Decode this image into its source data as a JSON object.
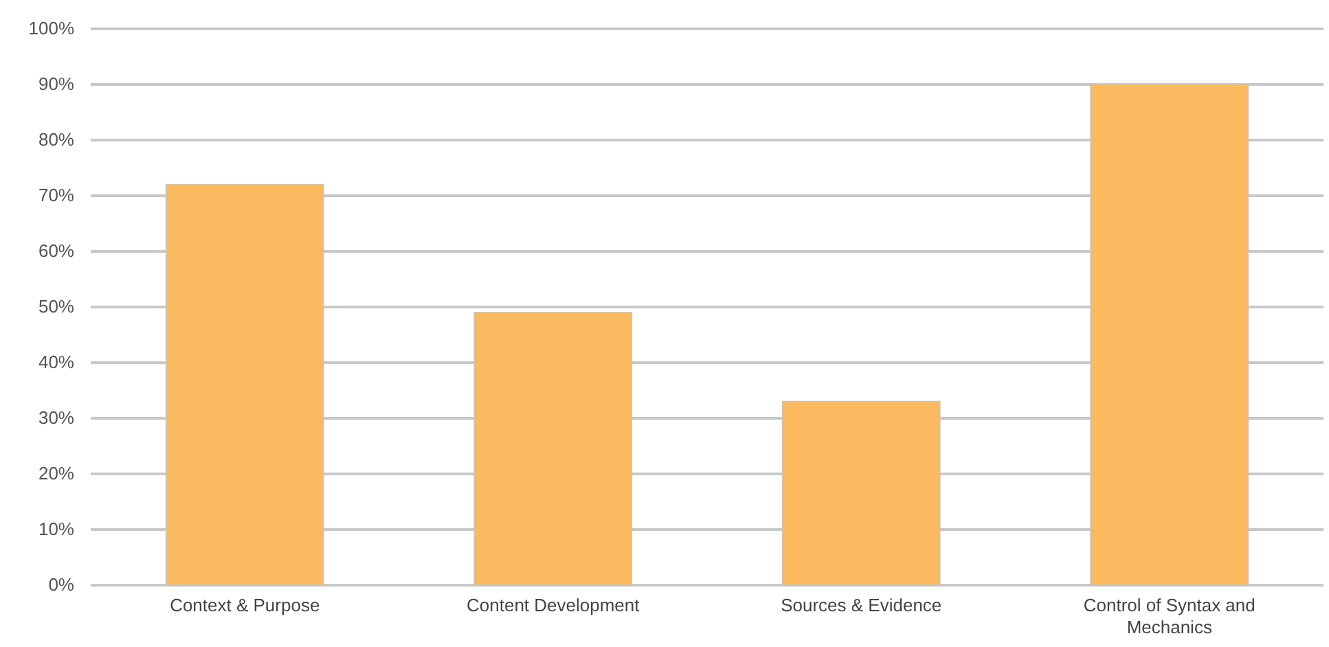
{
  "chart_data": {
    "type": "bar",
    "categories": [
      "Context & Purpose",
      "Content Development",
      "Sources & Evidence",
      "Control of Syntax and Mechanics"
    ],
    "values": [
      72,
      49,
      33,
      90
    ],
    "color": "#fbb960",
    "ylim": [
      0,
      100
    ],
    "yticks": [
      {
        "value": 0,
        "label": "0%"
      },
      {
        "value": 10,
        "label": "10%"
      },
      {
        "value": 20,
        "label": "20%"
      },
      {
        "value": 30,
        "label": "30%"
      },
      {
        "value": 40,
        "label": "40%"
      },
      {
        "value": 50,
        "label": "50%"
      },
      {
        "value": 60,
        "label": "60%"
      },
      {
        "value": 70,
        "label": "70%"
      },
      {
        "value": 80,
        "label": "80%"
      },
      {
        "value": 90,
        "label": "90%"
      },
      {
        "value": 100,
        "label": "100%"
      }
    ],
    "grid": "y"
  }
}
